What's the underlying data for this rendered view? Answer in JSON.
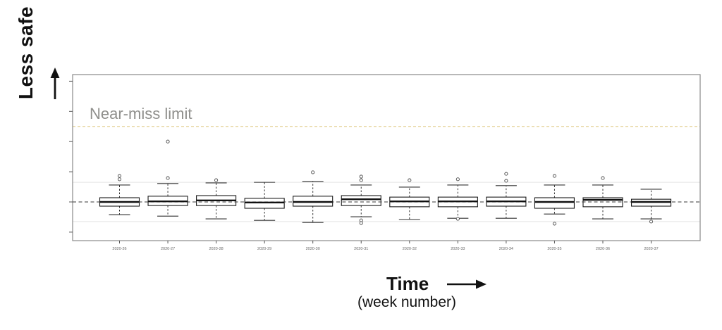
{
  "figure": {
    "y_axis_label": "Less safe",
    "x_axis_label": "Time",
    "x_axis_sublabel": "(week number)",
    "near_miss_label": "Near-miss limit"
  },
  "colors": {
    "near_miss_line": "#dfcc85",
    "grid_line": "#e4e4e4",
    "center_line": "#3a3a3a",
    "box_stroke": "#1a1a1a",
    "median": "#111111",
    "whisker": "#333333",
    "plot_border": "#8a8a8a",
    "tick": "#555555",
    "tick_label": "#666666",
    "outlier": "#4a4a4a"
  },
  "chart_data": {
    "type": "boxplot",
    "title": "",
    "xlabel": "Time (week number)",
    "ylabel": "Less safe (y-axis has unlabeled ticks; values below are in tick units, center dashed line = 0, one tick = 1)",
    "categories": [
      "2020-26",
      "2020-27",
      "2020-28",
      "2020-29",
      "2020-30",
      "2020-31",
      "2020-32",
      "2020-33",
      "2020-34",
      "2020-35",
      "2020-36",
      "2020-37"
    ],
    "y_ticks": [
      -1,
      0,
      1,
      2,
      3,
      4
    ],
    "ylim": [
      -1.28,
      4.22
    ],
    "grid_on": true,
    "grid_lines_y": [
      0.65,
      -0.65
    ],
    "center_line_y": 0,
    "near_miss_limit_y": 2.5,
    "legend": "none",
    "series": [
      {
        "week": "2020-26",
        "low": -0.42,
        "q1": -0.14,
        "median": 0.0,
        "q3": 0.14,
        "high": 0.56,
        "outliers": [
          0.86,
          0.75
        ]
      },
      {
        "week": "2020-27",
        "low": -0.47,
        "q1": -0.12,
        "median": 0.02,
        "q3": 0.19,
        "high": 0.61,
        "outliers": [
          2.0,
          0.79
        ]
      },
      {
        "week": "2020-28",
        "low": -0.56,
        "q1": -0.12,
        "median": 0.05,
        "q3": 0.21,
        "high": 0.63,
        "outliers": [
          0.72
        ]
      },
      {
        "week": "2020-29",
        "low": -0.61,
        "q1": -0.21,
        "median": -0.02,
        "q3": 0.12,
        "high": 0.65,
        "outliers": []
      },
      {
        "week": "2020-30",
        "low": -0.68,
        "q1": -0.14,
        "median": 0.0,
        "q3": 0.19,
        "high": 0.68,
        "outliers": [
          0.98
        ]
      },
      {
        "week": "2020-31",
        "low": -0.49,
        "q1": -0.12,
        "median": 0.09,
        "q3": 0.21,
        "high": 0.56,
        "outliers": [
          0.84,
          0.72,
          -0.61,
          -0.7
        ]
      },
      {
        "week": "2020-32",
        "low": -0.58,
        "q1": -0.16,
        "median": 0.02,
        "q3": 0.16,
        "high": 0.49,
        "outliers": [
          0.72
        ]
      },
      {
        "week": "2020-33",
        "low": -0.54,
        "q1": -0.16,
        "median": 0.02,
        "q3": 0.16,
        "high": 0.56,
        "outliers": [
          0.75,
          -0.56
        ]
      },
      {
        "week": "2020-34",
        "low": -0.54,
        "q1": -0.14,
        "median": 0.02,
        "q3": 0.16,
        "high": 0.54,
        "outliers": [
          0.93,
          0.7
        ]
      },
      {
        "week": "2020-35",
        "low": -0.4,
        "q1": -0.21,
        "median": 0.0,
        "q3": 0.14,
        "high": 0.56,
        "outliers": [
          0.86,
          -0.72
        ]
      },
      {
        "week": "2020-36",
        "low": -0.56,
        "q1": -0.16,
        "median": 0.07,
        "q3": 0.14,
        "high": 0.56,
        "outliers": [
          0.79
        ]
      },
      {
        "week": "2020-37",
        "low": -0.56,
        "q1": -0.14,
        "median": 0.0,
        "q3": 0.09,
        "high": 0.42,
        "outliers": [
          -0.65
        ]
      }
    ]
  }
}
